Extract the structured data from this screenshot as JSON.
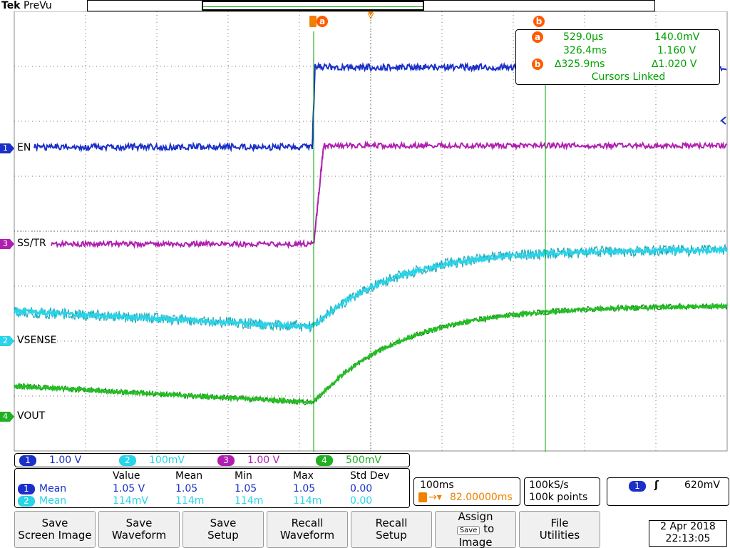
{
  "header": {
    "brand": "Tek",
    "mode": "PreVu"
  },
  "channels": [
    {
      "id": "1",
      "name": "EN",
      "color": "#1a30c8",
      "scale": "1.00 V"
    },
    {
      "id": "2",
      "name": "VSENSE",
      "color": "#2ad4e8",
      "scale": "100mV"
    },
    {
      "id": "3",
      "name": "SS/TR",
      "color": "#b020b0",
      "scale": "1.00 V"
    },
    {
      "id": "4",
      "name": "VOUT",
      "color": "#22b022",
      "scale": "500mV"
    }
  ],
  "cursors": {
    "a_label": "a",
    "b_label": "b",
    "a_time": "529.0µs",
    "a_volt": "140.0mV",
    "b_time": "326.4ms",
    "b_volt": "1.160 V",
    "delta_time": "∆325.9ms",
    "delta_volt": "∆1.020 V",
    "linked": "Cursors Linked"
  },
  "measurements": {
    "headers": [
      "Value",
      "Mean",
      "Min",
      "Max",
      "Std Dev"
    ],
    "rows": [
      {
        "channel": "1",
        "label": "Mean",
        "color": "#1a30c8",
        "values": [
          "1.05 V",
          "1.05",
          "1.05",
          "1.05",
          "0.00"
        ]
      },
      {
        "channel": "2",
        "label": "Mean",
        "color": "#2ad4e8",
        "values": [
          "114mV",
          "114m",
          "114m",
          "114m",
          "0.00"
        ]
      }
    ]
  },
  "horizontal": {
    "timebase": "100ms",
    "trigger_pos": "82.00000ms"
  },
  "acquisition": {
    "rate": "100kS/s",
    "points": "100k points"
  },
  "trigger": {
    "source": "1",
    "slope": "ʃ",
    "level": "620mV"
  },
  "buttons": {
    "save_screen": [
      "Save",
      "Screen Image"
    ],
    "save_waveform": [
      "Save",
      "Waveform"
    ],
    "save_setup": [
      "Save",
      "Setup"
    ],
    "recall_waveform": [
      "Recall",
      "Waveform"
    ],
    "recall_setup": [
      "Recall",
      "Setup"
    ],
    "assign": [
      "Assign",
      "Save",
      "to",
      "Image"
    ],
    "file_utilities": [
      "File",
      "Utilities"
    ]
  },
  "datetime": {
    "date": "2 Apr 2018",
    "time": "22:13:05"
  },
  "colors": {
    "cursor": "#00a000",
    "trigger": "#f08000",
    "badge": "#ff5a00"
  }
}
